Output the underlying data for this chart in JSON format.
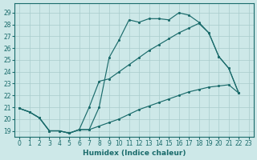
{
  "xlabel": "Humidex (Indice chaleur)",
  "bg_color": "#cde8e8",
  "grid_color": "#a8cccc",
  "line_color": "#1a6b6b",
  "ylim": [
    18.5,
    29.8
  ],
  "xlim": [
    -0.5,
    23.5
  ],
  "yticks": [
    19,
    20,
    21,
    22,
    23,
    24,
    25,
    26,
    27,
    28,
    29
  ],
  "xticks": [
    0,
    1,
    2,
    3,
    4,
    5,
    6,
    7,
    8,
    9,
    10,
    11,
    12,
    13,
    14,
    15,
    16,
    17,
    18,
    19,
    20,
    21,
    22,
    23
  ],
  "line1_x": [
    0,
    1,
    2,
    3,
    4,
    5,
    6,
    7,
    8,
    9,
    10,
    11,
    12,
    13,
    14,
    15,
    16,
    17,
    18,
    19,
    20,
    21,
    22
  ],
  "line1_y": [
    20.9,
    20.6,
    20.1,
    19.0,
    19.0,
    18.8,
    19.1,
    19.1,
    21.0,
    25.2,
    26.7,
    28.4,
    28.2,
    28.5,
    28.5,
    28.4,
    29.0,
    28.8,
    28.2,
    27.3,
    25.3,
    24.3,
    22.2
  ],
  "line2_x": [
    0,
    1,
    2,
    3,
    4,
    5,
    6,
    7,
    8,
    9,
    10,
    11,
    12,
    13,
    14,
    15,
    16,
    17,
    18,
    19,
    20,
    21,
    22
  ],
  "line2_y": [
    20.9,
    20.6,
    20.1,
    19.0,
    19.0,
    18.8,
    19.1,
    19.1,
    19.4,
    19.7,
    20.0,
    20.4,
    20.8,
    21.1,
    21.4,
    21.7,
    22.0,
    22.3,
    22.5,
    22.7,
    22.8,
    22.9,
    22.2
  ],
  "line3_x": [
    0,
    1,
    2,
    3,
    4,
    5,
    6,
    7,
    8,
    9,
    10,
    11,
    12,
    13,
    14,
    15,
    16,
    17,
    18,
    19,
    20,
    21,
    22
  ],
  "line3_y": [
    20.9,
    20.6,
    20.1,
    19.0,
    19.0,
    18.8,
    19.1,
    21.0,
    23.2,
    23.4,
    24.0,
    24.6,
    25.2,
    25.8,
    26.3,
    26.8,
    27.3,
    27.7,
    28.1,
    27.3,
    25.3,
    24.3,
    22.2
  ]
}
